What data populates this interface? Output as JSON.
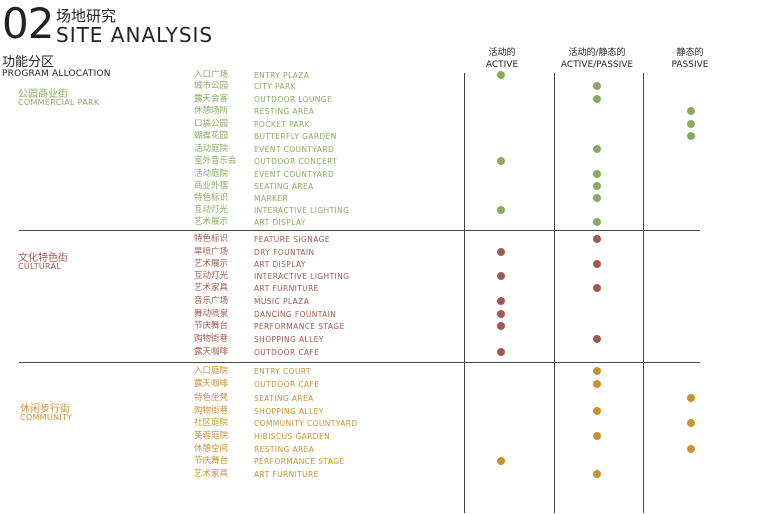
{
  "header": {
    "number": "02",
    "title_cn": "场地研究",
    "title_en": "SITE ANALYSIS"
  },
  "program": {
    "label_cn": "功能分区",
    "label_en": "PROGRAM ALLOCATION"
  },
  "columns": [
    {
      "cn": "活动的",
      "en": "ACTIVE"
    },
    {
      "cn": "活动的/静态的",
      "en": "ACTIVE/PASSIVE"
    },
    {
      "cn": "静态的",
      "en": "PASSIVE"
    }
  ],
  "categories": [
    {
      "cn": "公园商业街",
      "en": "COMMERCIAL PARK",
      "color": "#8aab5e",
      "items": [
        {
          "cn": "入口广场",
          "en": "ENTRY PLAZA",
          "col": "active"
        },
        {
          "cn": "城市公园",
          "en": "CITY PARK",
          "col": "active_passive"
        },
        {
          "cn": "露天会客",
          "en": "OUTDOOR LOUNGE",
          "col": "active_passive"
        },
        {
          "cn": "休憩场所",
          "en": "RESTING AREA",
          "col": "passive"
        },
        {
          "cn": "口袋公园",
          "en": "POCKET PARK",
          "col": "passive"
        },
        {
          "cn": "蝴蝶花园",
          "en": "BUTTERFLY GARDEN",
          "col": "passive"
        },
        {
          "cn": "活动庭院",
          "en": "EVENT COUNTYARD",
          "col": "active_passive"
        },
        {
          "cn": "室外音乐会",
          "en": "OUTDOOR CONCERT",
          "col": "active"
        },
        {
          "cn": "活动庭院",
          "en": "EVENT COUNTYARD",
          "col": "active_passive"
        },
        {
          "cn": "商业外摆",
          "en": "SEATING AREA",
          "col": "active_passive"
        },
        {
          "cn": "特色标识",
          "en": "MARKER",
          "col": "active_passive"
        },
        {
          "cn": "互动灯光",
          "en": "INTERACTIVE LIGHTING",
          "col": "active"
        },
        {
          "cn": "艺术展示",
          "en": "ART DISPLAY",
          "col": "active_passive"
        }
      ]
    },
    {
      "cn": "文化特色街",
      "en": "CULTURAL",
      "color": "#a05a52",
      "items": [
        {
          "cn": "特色标识",
          "en": "FEATURE SIGNAGE",
          "col": "active_passive"
        },
        {
          "cn": "旱喷广场",
          "en": "DRY FOUNTAIN",
          "col": "active"
        },
        {
          "cn": "艺术展示",
          "en": "ART DISPLAY",
          "col": "active_passive"
        },
        {
          "cn": "互动灯光",
          "en": "INTERACTIVE LIGHTING",
          "col": "active"
        },
        {
          "cn": "艺术家具",
          "en": "ART FURNITURE",
          "col": "active_passive"
        },
        {
          "cn": "音乐广场",
          "en": "MUSIC PLAZA",
          "col": "active"
        },
        {
          "cn": "舞动喷泉",
          "en": "DANCING  FOUNTAIN",
          "col": "active"
        },
        {
          "cn": "节庆舞台",
          "en": "PERFORMANCE STAGE",
          "col": "active"
        },
        {
          "cn": "购物街巷",
          "en": "SHOPPING ALLEY",
          "col": "active_passive"
        },
        {
          "cn": "露天咖啡",
          "en": "OUTDOOR CAFE",
          "col": "active"
        }
      ]
    },
    {
      "cn": "休闲步行街",
      "en": "COMMUNITY",
      "color": "#c9922e",
      "items": [
        {
          "cn": "入口庭院",
          "en": "ENTRY COURT",
          "col": "active_passive"
        },
        {
          "cn": "露天咖啡",
          "en": "OUTDOOR CAFE",
          "col": "active_passive"
        },
        {
          "cn": "特色坐凳",
          "en": "SEATING AREA",
          "col": "passive"
        },
        {
          "cn": "购物街巷",
          "en": "SHOPPING ALLEY",
          "col": "active_passive"
        },
        {
          "cn": "社区庭院",
          "en": "COMMUNITY COUNTYARD",
          "col": "passive"
        },
        {
          "cn": "芙蓉庭院",
          "en": "HIBISCUS GARDEN",
          "col": "active_passive"
        },
        {
          "cn": "休憩空间",
          "en": "RESTING AREA",
          "col": "passive"
        },
        {
          "cn": "节庆舞台",
          "en": "PERFORMANCE STAGE",
          "col": "active"
        },
        {
          "cn": "艺术家具",
          "en": "ART FURNITURE",
          "col": "active_passive"
        }
      ]
    }
  ]
}
